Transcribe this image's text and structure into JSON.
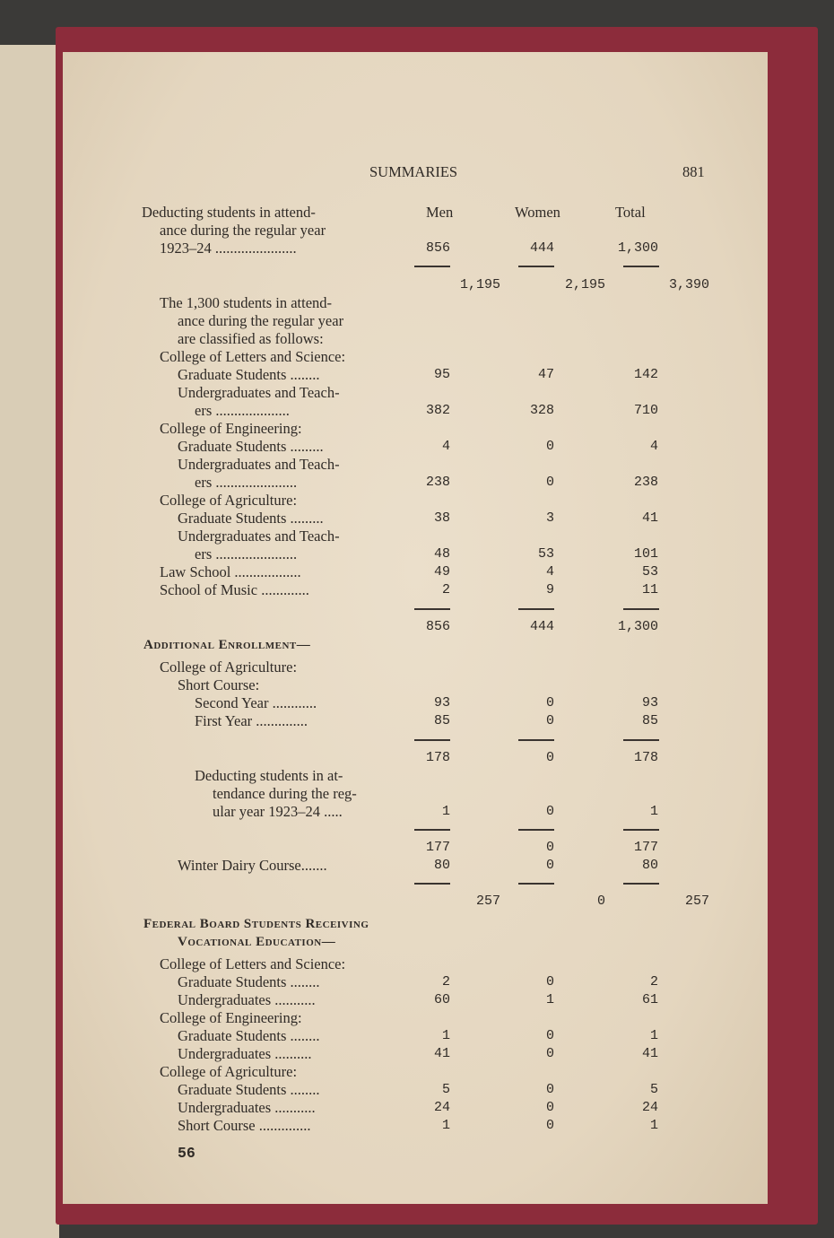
{
  "header": {
    "title": "SUMMARIES",
    "page_number": "881"
  },
  "columns": {
    "men": "Men",
    "women": "Women",
    "total": "Total"
  },
  "footer": {
    "page_number": "56"
  },
  "rows": [
    {
      "kind": "text",
      "indent": 0,
      "label": "Deducting students in attend-"
    },
    {
      "kind": "text",
      "indent": 1,
      "label": "ance during the regular year"
    },
    {
      "kind": "row",
      "indent": 1,
      "label": "1923–24 ......................",
      "men": "856",
      "women": "444",
      "total": "1,300"
    },
    {
      "kind": "rule"
    },
    {
      "kind": "sub",
      "men": "1,195",
      "women": "2,195",
      "total": "3,390"
    },
    {
      "kind": "text",
      "indent": 1,
      "label": "The 1,300 students in attend-"
    },
    {
      "kind": "text",
      "indent": 2,
      "label": "ance during the regular year"
    },
    {
      "kind": "text",
      "indent": 2,
      "label": "are classified as follows:"
    },
    {
      "kind": "text",
      "indent": 1,
      "label": "College of Letters and Science:"
    },
    {
      "kind": "row",
      "indent": 2,
      "label": "Graduate Students ........",
      "men": "95",
      "women": "47",
      "total": "142"
    },
    {
      "kind": "text",
      "indent": 2,
      "label": "Undergraduates and Teach-"
    },
    {
      "kind": "row",
      "indent": 3,
      "label": "ers ....................",
      "men": "382",
      "women": "328",
      "total": "710"
    },
    {
      "kind": "text",
      "indent": 1,
      "label": "College of Engineering:"
    },
    {
      "kind": "row",
      "indent": 2,
      "label": "Graduate Students .........",
      "men": "4",
      "women": "0",
      "total": "4"
    },
    {
      "kind": "text",
      "indent": 2,
      "label": "Undergraduates and Teach-"
    },
    {
      "kind": "row",
      "indent": 3,
      "label": "ers ......................",
      "men": "238",
      "women": "0",
      "total": "238"
    },
    {
      "kind": "text",
      "indent": 1,
      "label": "College of Agriculture:"
    },
    {
      "kind": "row",
      "indent": 2,
      "label": "Graduate Students .........",
      "men": "38",
      "women": "3",
      "total": "41"
    },
    {
      "kind": "text",
      "indent": 2,
      "label": "Undergraduates and Teach-"
    },
    {
      "kind": "row",
      "indent": 3,
      "label": "ers ......................",
      "men": "48",
      "women": "53",
      "total": "101"
    },
    {
      "kind": "row",
      "indent": 1,
      "label": "Law School ..................",
      "men": "49",
      "women": "4",
      "total": "53"
    },
    {
      "kind": "row",
      "indent": 1,
      "label": "School of Music .............",
      "men": "2",
      "women": "9",
      "total": "11"
    },
    {
      "kind": "rule"
    },
    {
      "kind": "row",
      "indent": 0,
      "label": "",
      "men": "856",
      "women": "444",
      "total": "1,300"
    },
    {
      "kind": "head",
      "indent": 0,
      "label": "Additional Enrollment—"
    },
    {
      "kind": "text",
      "indent": 1,
      "label": "College of Agriculture:"
    },
    {
      "kind": "text",
      "indent": 2,
      "label": "Short Course:"
    },
    {
      "kind": "row",
      "indent": 3,
      "label": "Second Year ............",
      "men": "93",
      "women": "0",
      "total": "93"
    },
    {
      "kind": "row",
      "indent": 3,
      "label": "First Year ..............",
      "men": "85",
      "women": "0",
      "total": "85"
    },
    {
      "kind": "rule"
    },
    {
      "kind": "row",
      "indent": 0,
      "label": "",
      "men": "178",
      "women": "0",
      "total": "178"
    },
    {
      "kind": "text",
      "indent": 3,
      "label": "Deducting students in at-"
    },
    {
      "kind": "text",
      "indent": 4,
      "label": "tendance during the reg-"
    },
    {
      "kind": "row",
      "indent": 4,
      "label": "ular year 1923–24 .....",
      "men": "1",
      "women": "0",
      "total": "1"
    },
    {
      "kind": "rule"
    },
    {
      "kind": "row",
      "indent": 0,
      "label": "",
      "men": "177",
      "women": "0",
      "total": "177"
    },
    {
      "kind": "row",
      "indent": 2,
      "label": "Winter Dairy Course.......",
      "men": "80",
      "women": "0",
      "total": "80"
    },
    {
      "kind": "rule"
    },
    {
      "kind": "sub",
      "men": "257",
      "women": "0",
      "total": "257"
    },
    {
      "kind": "head",
      "indent": 0,
      "label": "Federal Board Students Receiving"
    },
    {
      "kind": "head",
      "indent": 2,
      "label": "Vocational Education—"
    },
    {
      "kind": "text",
      "indent": 1,
      "label": "College of Letters and Science:"
    },
    {
      "kind": "row",
      "indent": 2,
      "label": "Graduate Students ........",
      "men": "2",
      "women": "0",
      "total": "2"
    },
    {
      "kind": "row",
      "indent": 2,
      "label": "Undergraduates ...........",
      "men": "60",
      "women": "1",
      "total": "61"
    },
    {
      "kind": "text",
      "indent": 1,
      "label": "College of Engineering:"
    },
    {
      "kind": "row",
      "indent": 2,
      "label": "Graduate Students ........",
      "men": "1",
      "women": "0",
      "total": "1"
    },
    {
      "kind": "row",
      "indent": 2,
      "label": "Undergraduates ..........",
      "men": "41",
      "women": "0",
      "total": "41"
    },
    {
      "kind": "text",
      "indent": 1,
      "label": "College of Agriculture:"
    },
    {
      "kind": "row",
      "indent": 2,
      "label": "Graduate Students ........",
      "men": "5",
      "women": "0",
      "total": "5"
    },
    {
      "kind": "row",
      "indent": 2,
      "label": "Undergraduates ...........",
      "men": "24",
      "women": "0",
      "total": "24"
    },
    {
      "kind": "row",
      "indent": 2,
      "label": "Short Course ..............",
      "men": "1",
      "women": "0",
      "total": "1"
    }
  ]
}
